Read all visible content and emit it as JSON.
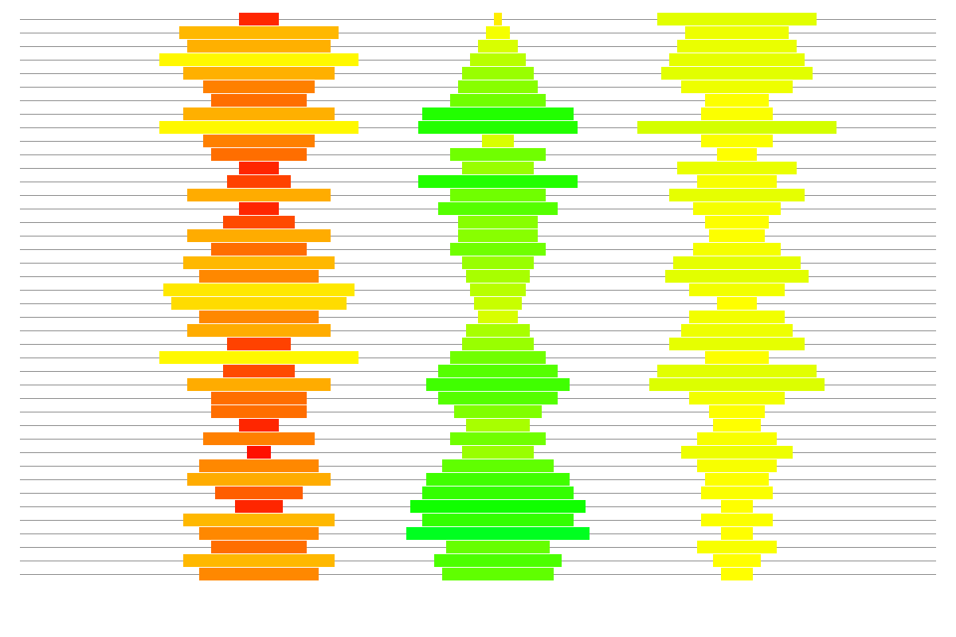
{
  "chart_data": {
    "type": "bar",
    "orientation": "horizontal-centered",
    "grid": true,
    "title": "",
    "xlabel": "",
    "ylabel": "",
    "series": [
      {
        "values": [
          50,
          200,
          180,
          250,
          190,
          140,
          120,
          190,
          250,
          140,
          120,
          50,
          80,
          180,
          50,
          90,
          180,
          120,
          190,
          150,
          240,
          220,
          150,
          180,
          80,
          250,
          90,
          180,
          120,
          120,
          50,
          140,
          30,
          150,
          180,
          110,
          60,
          190,
          150,
          120,
          190,
          150
        ],
        "colors": [
          "#ff2600",
          "#ffb800",
          "#ffb000",
          "#fff800",
          "#ffb000",
          "#ff8000",
          "#ff6e00",
          "#ffb000",
          "#fff800",
          "#ff8000",
          "#ff6e00",
          "#ff2600",
          "#ff4200",
          "#ffac00",
          "#ff2600",
          "#ff4a00",
          "#ffac00",
          "#ff6e00",
          "#ffb800",
          "#ff8800",
          "#ffe800",
          "#ffdc00",
          "#ff8800",
          "#ffac00",
          "#ff4200",
          "#fff800",
          "#ff4a00",
          "#ffac00",
          "#ff6e00",
          "#ff6e00",
          "#ff2600",
          "#ff8000",
          "#ff1000",
          "#ff8800",
          "#ffac00",
          "#ff5e00",
          "#ff2600",
          "#ffb800",
          "#ff8800",
          "#ff6e00",
          "#ffb800",
          "#ff8800"
        ]
      },
      {
        "values": [
          10,
          30,
          50,
          70,
          90,
          100,
          120,
          190,
          200,
          40,
          120,
          90,
          200,
          120,
          150,
          100,
          100,
          120,
          90,
          80,
          70,
          60,
          50,
          80,
          90,
          120,
          150,
          180,
          150,
          110,
          80,
          120,
          90,
          140,
          180,
          190,
          220,
          190,
          230,
          130,
          160,
          140
        ],
        "colors": [
          "#ffee00",
          "#f5ff00",
          "#d8ff00",
          "#b8ff00",
          "#99ff00",
          "#88ff00",
          "#70ff00",
          "#22ff00",
          "#22ff00",
          "#d8ff00",
          "#70ff00",
          "#99ff00",
          "#22ff00",
          "#70ff00",
          "#55ff00",
          "#88ff00",
          "#88ff00",
          "#70ff00",
          "#99ff00",
          "#a8ff00",
          "#b8ff00",
          "#c8ff00",
          "#d8ff00",
          "#a8ff00",
          "#99ff00",
          "#70ff00",
          "#55ff00",
          "#40ff00",
          "#55ff00",
          "#80ff00",
          "#a8ff00",
          "#70ff00",
          "#99ff00",
          "#60ff00",
          "#40ff00",
          "#33ff00",
          "#10ff00",
          "#33ff00",
          "#00ff20",
          "#66ff00",
          "#4cff00",
          "#60ff00"
        ]
      },
      {
        "values": [
          200,
          130,
          150,
          170,
          190,
          140,
          80,
          90,
          250,
          90,
          50,
          150,
          100,
          170,
          110,
          80,
          70,
          110,
          160,
          180,
          120,
          50,
          120,
          140,
          170,
          80,
          200,
          220,
          120,
          70,
          60,
          100,
          140,
          100,
          80,
          90,
          40,
          90,
          40,
          100,
          60,
          40
        ],
        "colors": [
          "#e2ff00",
          "#eeff00",
          "#eaff00",
          "#e6ff00",
          "#e2ff00",
          "#eeff00",
          "#fdff00",
          "#fbff00",
          "#d4ff00",
          "#fbff00",
          "#ffff00",
          "#eaff00",
          "#f8ff00",
          "#e6ff00",
          "#f5ff00",
          "#fdff00",
          "#fdff00",
          "#f5ff00",
          "#e6ff00",
          "#e2ff00",
          "#f2ff00",
          "#ffff00",
          "#f2ff00",
          "#eeff00",
          "#e6ff00",
          "#fdff00",
          "#e2ff00",
          "#dcff00",
          "#f2ff00",
          "#fdff00",
          "#ffff00",
          "#f8ff00",
          "#eeff00",
          "#f8ff00",
          "#fdff00",
          "#fbff00",
          "#ffff00",
          "#fbff00",
          "#ffff00",
          "#f8ff00",
          "#ffff00",
          "#ffff00"
        ]
      }
    ]
  }
}
